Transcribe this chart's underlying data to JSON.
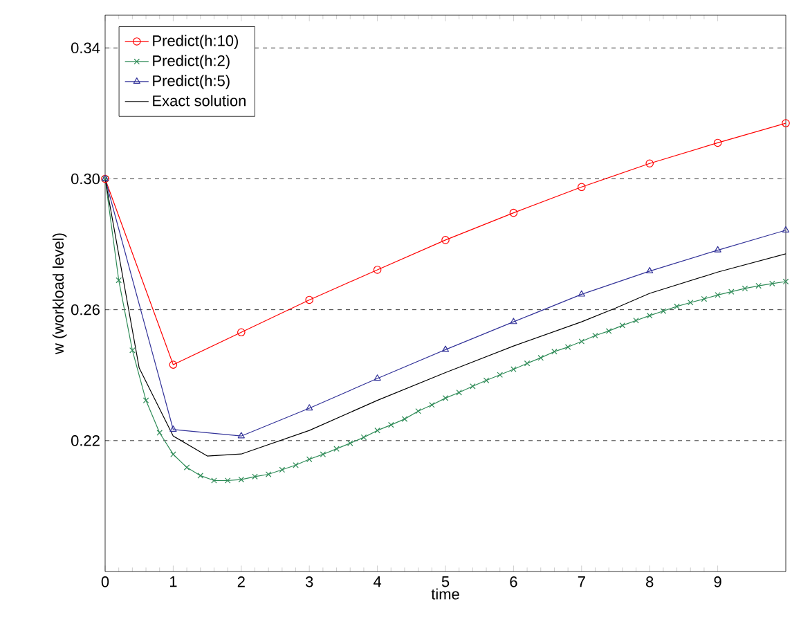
{
  "chart_data": {
    "type": "line",
    "xlabel": "time",
    "ylabel": "w (workload level)",
    "xlim": [
      0,
      10
    ],
    "xticks": [
      0,
      1,
      2,
      3,
      4,
      5,
      6,
      7,
      8,
      9
    ],
    "ylim": [
      0.18,
      0.35
    ],
    "yticks": [
      0.22,
      0.26,
      {
        "value": 0.3,
        "label": "0.30"
      },
      0.34
    ],
    "grid": "y",
    "legend": "top left",
    "line_style": "solid",
    "series": [
      {
        "name": "Predict(h:10)",
        "color": "#ff0000",
        "marker": "circle",
        "x": [
          0,
          1,
          2,
          3,
          4,
          5,
          6,
          7,
          8,
          9,
          10
        ],
        "values": [
          0.3,
          0.2432,
          0.2531,
          0.263,
          0.2722,
          0.2813,
          0.2896,
          0.2975,
          0.3047,
          0.311,
          0.317
        ]
      },
      {
        "name": "Predict(h:2)",
        "color": "#2e8b57",
        "marker": "cross",
        "x": [
          0,
          0.2,
          0.4,
          0.6,
          0.8,
          1.0,
          1.2,
          1.4,
          1.6,
          1.8,
          2.0,
          2.2,
          2.4,
          2.6,
          2.8,
          3.0,
          3.2,
          3.4,
          3.6,
          3.8,
          4.0,
          4.2,
          4.4,
          4.6,
          4.8,
          5.0,
          5.2,
          5.4,
          5.6,
          5.8,
          6.0,
          6.2,
          6.4,
          6.6,
          6.8,
          7.0,
          7.2,
          7.4,
          7.6,
          7.8,
          8.0,
          8.2,
          8.4,
          8.6,
          8.8,
          9.0,
          9.2,
          9.4,
          9.6,
          9.8,
          10
        ],
        "values": [
          0.3,
          0.269,
          0.2476,
          0.2323,
          0.2224,
          0.2158,
          0.2118,
          0.2093,
          0.2078,
          0.2078,
          0.2081,
          0.209,
          0.2097,
          0.2111,
          0.2125,
          0.2143,
          0.2158,
          0.2175,
          0.2192,
          0.221,
          0.2231,
          0.2248,
          0.2266,
          0.229,
          0.2309,
          0.233,
          0.2347,
          0.2366,
          0.2384,
          0.2401,
          0.2418,
          0.2436,
          0.2453,
          0.2472,
          0.2486,
          0.2503,
          0.2521,
          0.2535,
          0.2552,
          0.2567,
          0.2582,
          0.2596,
          0.261,
          0.2622,
          0.2633,
          0.2645,
          0.2655,
          0.2665,
          0.2673,
          0.268,
          0.2686
        ]
      },
      {
        "name": "Predict(h:5)",
        "color": "#333399",
        "marker": "triangle",
        "x": [
          0,
          1,
          2,
          3,
          4,
          5,
          6,
          7,
          8,
          9,
          10
        ],
        "values": [
          0.3,
          0.2234,
          0.2214,
          0.2299,
          0.239,
          0.2478,
          0.2563,
          0.2647,
          0.2718,
          0.2782,
          0.2843
        ]
      },
      {
        "name": "Exact solution",
        "color": "#000000",
        "marker": "none",
        "x": [
          0,
          0.5,
          1,
          1.5,
          2,
          3,
          4,
          5,
          6,
          7,
          7.5,
          8,
          9,
          10
        ],
        "values": [
          0.3,
          0.2422,
          0.2214,
          0.2153,
          0.2159,
          0.2231,
          0.2323,
          0.2408,
          0.2489,
          0.2563,
          0.2605,
          0.265,
          0.2715,
          0.2771
        ]
      }
    ]
  }
}
